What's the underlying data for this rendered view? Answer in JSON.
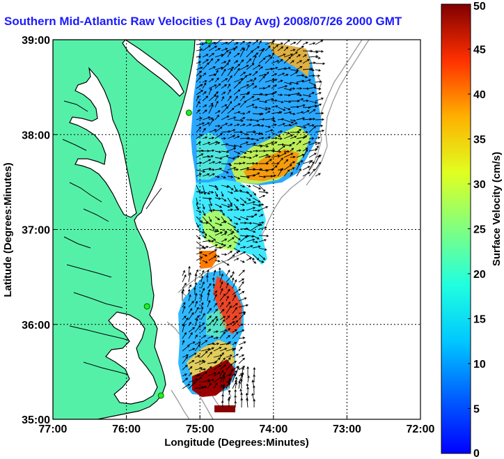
{
  "title": "Southern Mid-Atlantic Raw Velocities (1 Day Avg) 2008/07/26 2000 GMT",
  "map": {
    "x_axis_label": "Longitude (Degrees:Minutes)",
    "y_axis_label": "Latitude (Degrees:Minutes)",
    "x_ticks": [
      "77:00",
      "76:00",
      "75:00",
      "74:00",
      "73:00",
      "72:00"
    ],
    "y_ticks": [
      "39:00",
      "38:00",
      "37:00",
      "36:00",
      "35:00"
    ],
    "lon_range_deg": [
      -77,
      -72
    ],
    "lat_range_deg": [
      35,
      39
    ],
    "land_color": "#55f0a8",
    "coastline_color": "#000000",
    "bathymetry_color": "#9a9a9a",
    "grid_style": "dotted",
    "stations": [
      {
        "lon": -74.88,
        "lat": 38.99
      },
      {
        "lon": -75.15,
        "lat": 38.23
      },
      {
        "lon": -75.72,
        "lat": 36.19
      },
      {
        "lon": -75.53,
        "lat": 35.25
      }
    ]
  },
  "colorbar": {
    "label": "Surface Velocity (cm/s)",
    "ticks": [
      "0",
      "5",
      "10",
      "15",
      "20",
      "25",
      "30",
      "35",
      "40",
      "45",
      "50"
    ],
    "range": [
      0,
      50
    ],
    "colormap": "jet"
  }
}
